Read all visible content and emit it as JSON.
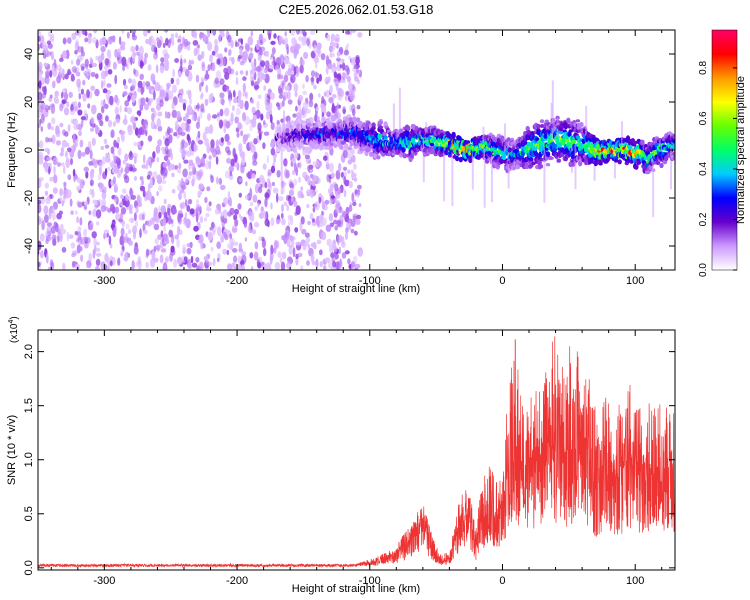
{
  "title": "C2E5.2026.062.01.53.G18",
  "chart_data": [
    {
      "type": "heatmap",
      "panel": "spectrogram",
      "xlabel": "Height of straight line (km)",
      "ylabel": "Frequency (Hz)",
      "xlim": [
        -350,
        130
      ],
      "ylim": [
        -50,
        50
      ],
      "x_ticks": [
        -300,
        -200,
        -100,
        0,
        100
      ],
      "x_tick_labels": [
        "-300",
        "-200",
        "-100",
        "0",
        "100"
      ],
      "y_ticks": [
        -40,
        -20,
        0,
        20,
        40
      ],
      "y_tick_labels": [
        "-40",
        "-20",
        "0",
        "20",
        "40"
      ],
      "noise_region": {
        "x_range": [
          -350,
          -107
        ],
        "y_range": [
          -50,
          50
        ]
      },
      "signal_ridge": {
        "x": [
          -170,
          -150,
          -130,
          -110,
          -100,
          -90,
          -80,
          -70,
          -60,
          -50,
          -40,
          -30,
          -20,
          -10,
          0,
          10,
          20,
          30,
          40,
          50,
          60,
          70,
          80,
          90,
          100,
          110,
          120,
          130
        ],
        "center_hz": [
          5,
          6,
          7,
          7,
          5,
          4,
          3,
          3,
          4,
          4,
          2,
          1,
          0,
          1,
          -1,
          -2,
          1,
          3,
          4,
          4,
          2,
          0,
          0,
          0,
          -1,
          -3,
          0,
          1
        ],
        "half_width_hz": [
          3,
          4,
          4,
          4,
          5,
          5,
          4,
          5,
          4,
          4,
          3,
          3,
          3,
          4,
          5,
          4,
          6,
          7,
          6,
          7,
          6,
          4,
          3,
          3,
          4,
          4,
          4,
          4
        ],
        "peak_amplitude": [
          0.2,
          0.3,
          0.35,
          0.4,
          0.45,
          0.5,
          0.45,
          0.55,
          0.5,
          0.6,
          0.8,
          0.9,
          0.85,
          0.5,
          0.55,
          0.45,
          0.6,
          0.6,
          0.6,
          0.65,
          0.5,
          0.9,
          0.95,
          0.9,
          0.85,
          0.6,
          0.55,
          0.5
        ]
      },
      "colorbar": {
        "label": "Normalized spectral amplitude",
        "range": [
          0.0,
          0.95
        ],
        "ticks": [
          0.0,
          0.2,
          0.4,
          0.6,
          0.8
        ],
        "tick_labels": [
          "0.0",
          "0.2",
          "0.4",
          "0.6",
          "0.8"
        ],
        "colors": [
          "#ffffff",
          "#cc99ff",
          "#6600cc",
          "#0000ff",
          "#00ccff",
          "#00ff66",
          "#66ff00",
          "#ffff00",
          "#ff9900",
          "#ff0000",
          "#ff0066"
        ]
      }
    },
    {
      "type": "line",
      "panel": "snr",
      "xlabel": "Height of straight line (km)",
      "ylabel": "SNR (10 * v/v)",
      "y_multiplier_base": "(x10",
      "y_multiplier_exp": "4",
      "y_multiplier_close": ")",
      "xlim": [
        -350,
        130
      ],
      "ylim": [
        -0.02,
        2.2
      ],
      "x_ticks": [
        -300,
        -200,
        -100,
        0,
        100
      ],
      "x_tick_labels": [
        "-300",
        "-200",
        "-100",
        "0",
        "100"
      ],
      "y_ticks": [
        0.0,
        0.5,
        1.0,
        1.5,
        2.0
      ],
      "y_tick_labels": [
        "0.0",
        "0.5",
        "1.0",
        "1.5",
        "2.0"
      ],
      "line_color": "#ee3333",
      "series": [
        {
          "x": [
            -350,
            -300,
            -250,
            -200,
            -150,
            -110,
            -100,
            -90,
            -80,
            -75,
            -70,
            -65,
            -60,
            -55,
            -50,
            -45,
            -40,
            -35,
            -30,
            -25,
            -20,
            -15,
            -10,
            -5,
            0,
            5,
            10,
            15,
            20,
            25,
            30,
            35,
            40,
            45,
            50,
            55,
            60,
            65,
            70,
            75,
            80,
            85,
            90,
            95,
            100,
            105,
            110,
            115,
            120,
            125,
            130
          ],
          "values": [
            0.02,
            0.02,
            0.02,
            0.02,
            0.02,
            0.03,
            0.05,
            0.08,
            0.12,
            0.18,
            0.25,
            0.35,
            0.45,
            0.25,
            0.12,
            0.06,
            0.08,
            0.3,
            0.45,
            0.5,
            0.2,
            0.5,
            0.6,
            0.45,
            0.6,
            0.95,
            1.0,
            0.95,
            1.0,
            1.05,
            1.0,
            1.1,
            1.15,
            1.05,
            1.1,
            1.2,
            1.05,
            1.1,
            0.8,
            0.9,
            0.9,
            0.85,
            0.9,
            0.95,
            0.95,
            0.9,
            0.9,
            0.95,
            0.85,
            0.95,
            0.9
          ],
          "envelope_max": [
            0.02,
            0.02,
            0.02,
            0.02,
            0.02,
            0.04,
            0.08,
            0.13,
            0.2,
            0.3,
            0.4,
            0.5,
            0.6,
            0.4,
            0.2,
            0.12,
            0.15,
            0.5,
            0.75,
            0.8,
            0.4,
            0.8,
            1.0,
            0.8,
            1.0,
            1.7,
            2.2,
            1.6,
            1.65,
            1.75,
            1.6,
            2.0,
            2.2,
            1.9,
            2.05,
            2.1,
            1.85,
            1.8,
            1.5,
            1.6,
            1.6,
            1.5,
            1.65,
            1.7,
            1.7,
            1.55,
            1.6,
            1.7,
            1.45,
            1.75,
            1.6
          ]
        }
      ]
    }
  ]
}
